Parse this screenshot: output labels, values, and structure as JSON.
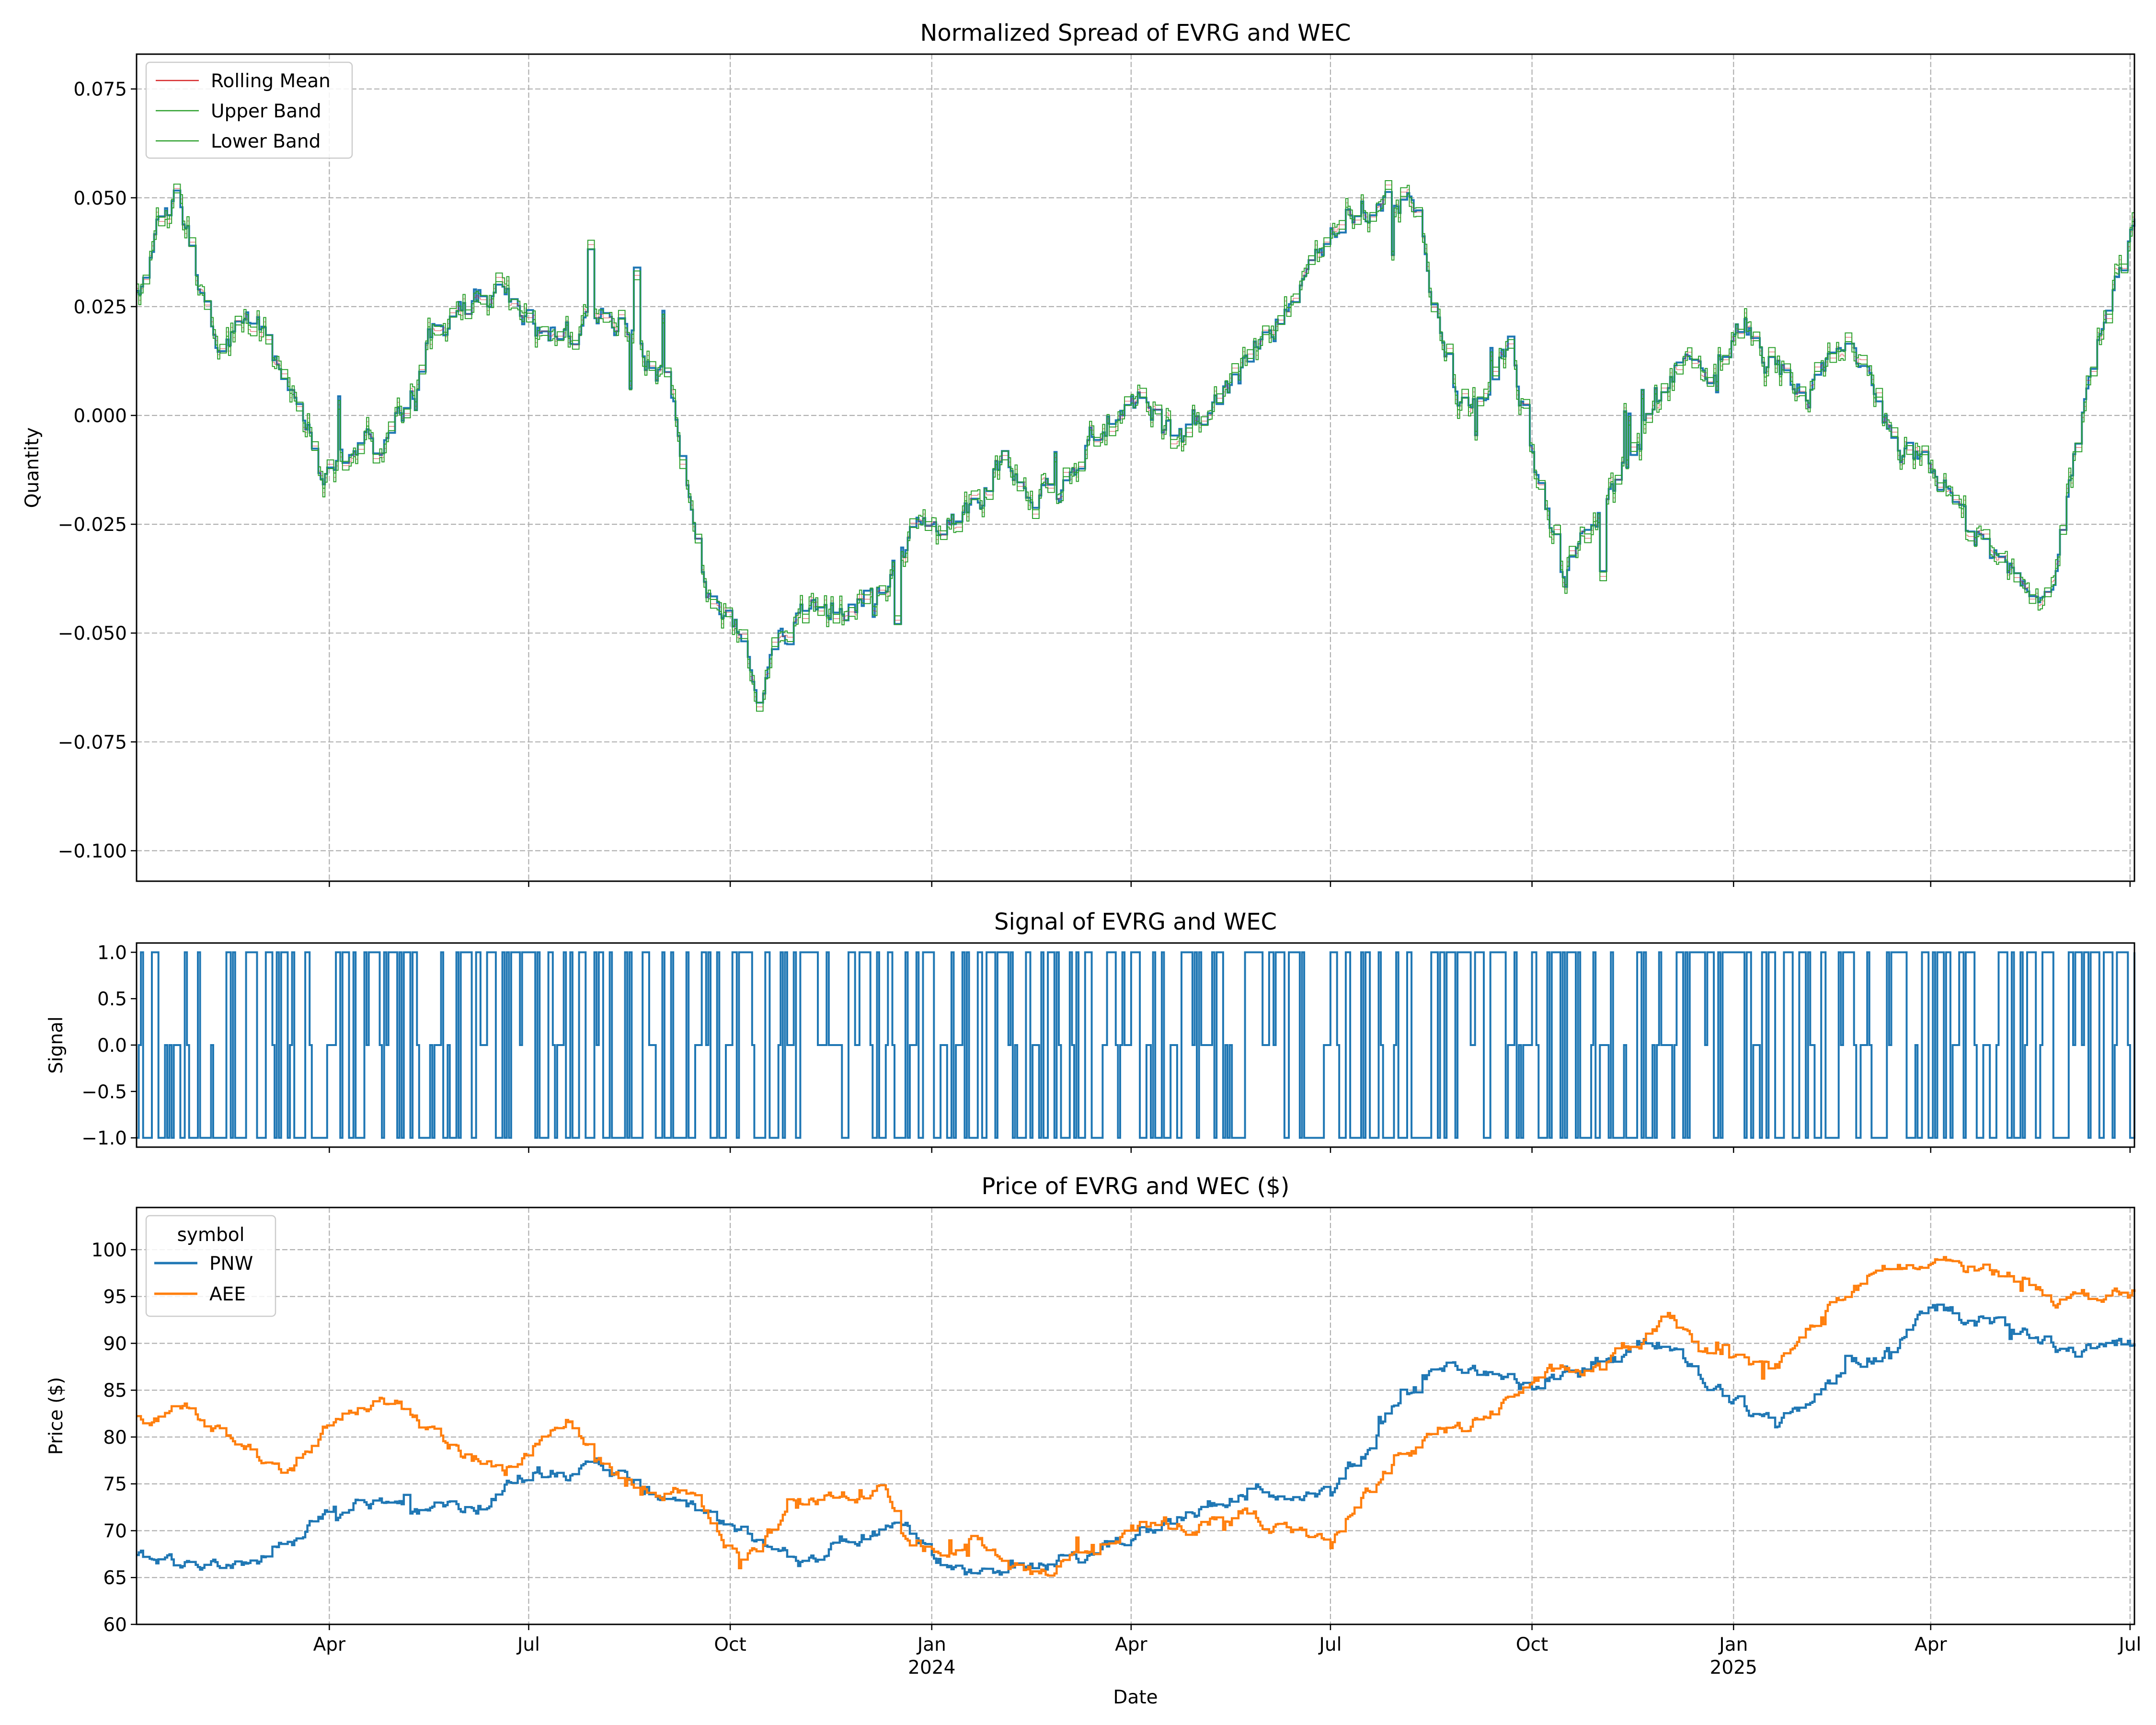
{
  "figure": {
    "xlabel": "Date",
    "x_tick_labels": [
      {
        "date": "2023-04-01",
        "label": "Apr"
      },
      {
        "date": "2023-07-01",
        "label": "Jul"
      },
      {
        "date": "2023-10-01",
        "label": "Oct"
      },
      {
        "date": "2024-01-01",
        "label": "Jan",
        "sub": "2024"
      },
      {
        "date": "2024-04-01",
        "label": "Apr"
      },
      {
        "date": "2024-07-01",
        "label": "Jul"
      },
      {
        "date": "2024-10-01",
        "label": "Oct"
      },
      {
        "date": "2025-01-01",
        "label": "Jan",
        "sub": "2025"
      },
      {
        "date": "2025-04-01",
        "label": "Apr"
      },
      {
        "date": "2025-07-01",
        "label": "Jul"
      }
    ],
    "xlim": [
      "2023-01-03",
      "2025-07-03"
    ]
  },
  "chart_data": [
    {
      "type": "line",
      "title": "Normalized Spread of EVRG and WEC",
      "ylabel": "Quantity",
      "ylim": [
        -0.107,
        0.083
      ],
      "yticks": [
        -0.1,
        -0.075,
        -0.05,
        -0.025,
        0.0,
        0.025,
        0.05,
        0.075
      ],
      "ytick_labels": [
        "−0.100",
        "−0.075",
        "−0.050",
        "−0.025",
        "0.000",
        "0.025",
        "0.050",
        "0.075"
      ],
      "grid": true,
      "legend": {
        "position": "top-left",
        "entries": [
          "Rolling Mean",
          "Upper Band",
          "Lower Band"
        ]
      },
      "series": [
        {
          "name": "Spread",
          "color": "#1f77b4",
          "x": [
            "2023-01-03",
            "2023-01-20",
            "2023-02-10",
            "2023-03-01",
            "2023-04-01",
            "2023-04-25",
            "2023-05-20",
            "2023-06-15",
            "2023-07-10",
            "2023-08-10",
            "2023-09-01",
            "2023-09-20",
            "2023-10-15",
            "2023-11-05",
            "2023-12-01",
            "2024-01-05",
            "2024-02-01",
            "2024-03-01",
            "2024-04-01",
            "2024-04-25",
            "2024-05-20",
            "2024-06-15",
            "2024-07-10",
            "2024-08-05",
            "2024-08-30",
            "2024-09-20",
            "2024-10-15",
            "2024-11-10",
            "2024-12-05",
            "2025-01-05",
            "2025-02-01",
            "2025-02-25",
            "2025-03-20",
            "2025-04-10",
            "2025-05-01",
            "2025-05-25",
            "2025-06-15",
            "2025-07-03"
          ],
          "values": [
            0.03,
            0.05,
            0.015,
            0.02,
            -0.015,
            -0.01,
            0.02,
            0.025,
            0.015,
            0.025,
            0.01,
            -0.03,
            -0.06,
            -0.045,
            -0.04,
            -0.025,
            -0.01,
            -0.015,
            0.01,
            -0.01,
            0.005,
            0.035,
            0.05,
            0.05,
            0.0,
            0.015,
            -0.04,
            -0.01,
            0.01,
            0.02,
            0.005,
            0.015,
            -0.005,
            -0.015,
            -0.03,
            -0.035,
            0.01,
            0.05
          ]
        },
        {
          "name": "Rolling Mean",
          "color": "#d62728",
          "values": []
        },
        {
          "name": "Upper Band",
          "color": "#2ca02c",
          "values": []
        },
        {
          "name": "Lower Band",
          "color": "#2ca02c",
          "values": []
        }
      ]
    },
    {
      "type": "line",
      "title": "Signal of EVRG and WEC",
      "ylabel": "Signal",
      "ylim": [
        -1.1,
        1.1
      ],
      "yticks": [
        -1.0,
        -0.5,
        0.0,
        0.5,
        1.0
      ],
      "ytick_labels": [
        "−1.0",
        "−0.5",
        "0.0",
        "0.5",
        "1.0"
      ],
      "grid": false,
      "series": [
        {
          "name": "Signal",
          "color": "#1f77b4",
          "levels": [
            -1.0,
            0.0,
            1.0
          ],
          "pattern": "dense alternation between -1, 0 and 1 over the whole period"
        }
      ]
    },
    {
      "type": "line",
      "title": "Price of EVRG and WEC ($)",
      "ylabel": "Price ($)",
      "ylim": [
        60,
        104.5
      ],
      "yticks": [
        60,
        65,
        70,
        75,
        80,
        85,
        90,
        95,
        100
      ],
      "ytick_labels": [
        "60",
        "65",
        "70",
        "75",
        "80",
        "85",
        "90",
        "95",
        "100"
      ],
      "grid": true,
      "legend": {
        "position": "top-left",
        "title": "symbol",
        "entries": [
          "PNW",
          "AEE"
        ]
      },
      "series": [
        {
          "name": "PNW",
          "color": "#1f77b4",
          "x": [
            "2023-01-03",
            "2023-02-01",
            "2023-03-01",
            "2023-04-01",
            "2023-05-01",
            "2023-06-01",
            "2023-07-01",
            "2023-08-01",
            "2023-09-01",
            "2023-10-01",
            "2023-11-01",
            "2023-12-15",
            "2024-01-10",
            "2024-02-01",
            "2024-03-01",
            "2024-04-01",
            "2024-05-01",
            "2024-06-01",
            "2024-07-01",
            "2024-08-01",
            "2024-09-01",
            "2024-10-01",
            "2024-11-01",
            "2024-12-01",
            "2025-01-01",
            "2025-01-20",
            "2025-02-15",
            "2025-03-15",
            "2025-04-01",
            "2025-05-01",
            "2025-06-01",
            "2025-07-03"
          ],
          "values": [
            67,
            66,
            67,
            72,
            72,
            72,
            76,
            77,
            73,
            70,
            67,
            71,
            66,
            64,
            67,
            69,
            72,
            75,
            73,
            84,
            88,
            85,
            88,
            90,
            84,
            81,
            86,
            90,
            94,
            92,
            89,
            90
          ]
        },
        {
          "name": "AEE",
          "color": "#ff7f0e",
          "x": [
            "2023-01-03",
            "2023-01-20",
            "2023-02-15",
            "2023-03-10",
            "2023-04-05",
            "2023-05-01",
            "2023-05-25",
            "2023-06-20",
            "2023-07-20",
            "2023-08-10",
            "2023-09-10",
            "2023-10-05",
            "2023-11-01",
            "2023-12-10",
            "2023-12-20",
            "2024-01-20",
            "2024-02-15",
            "2024-03-15",
            "2024-04-15",
            "2024-05-20",
            "2024-06-15",
            "2024-07-01",
            "2024-08-01",
            "2024-09-01",
            "2024-10-01",
            "2024-11-01",
            "2024-12-01",
            "2025-01-01",
            "2025-01-20",
            "2025-02-20",
            "2025-03-15",
            "2025-04-10",
            "2025-05-01",
            "2025-06-01",
            "2025-07-03"
          ],
          "values": [
            82,
            83,
            80,
            76,
            83,
            84,
            78,
            77,
            82,
            76,
            74,
            67,
            73,
            74,
            68,
            69,
            65,
            69,
            70,
            72,
            70,
            68,
            79,
            81,
            86,
            87,
            92,
            87,
            87,
            95,
            98,
            98,
            98,
            95,
            95
          ]
        }
      ]
    }
  ]
}
